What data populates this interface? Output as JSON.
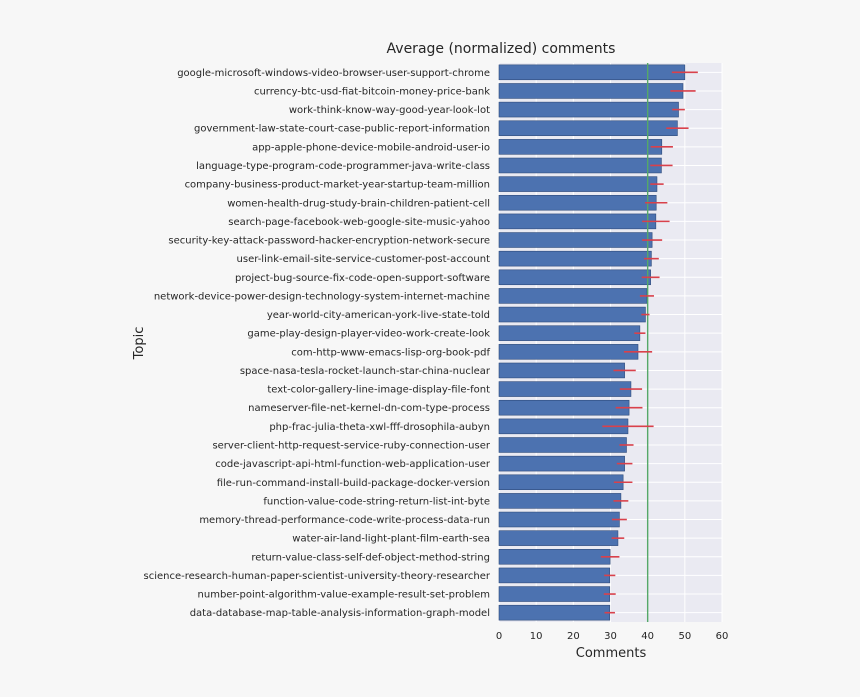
{
  "chart_data": {
    "type": "bar",
    "orientation": "horizontal",
    "title": "Average (normalized) comments",
    "xlabel": "Comments",
    "ylabel": "Topic",
    "xlim": [
      0,
      60
    ],
    "xticks": [
      "0",
      "10",
      "20",
      "30",
      "40",
      "50",
      "60"
    ],
    "grid": true,
    "reference_line_x": 40,
    "categories": [
      "google-microsoft-windows-video-browser-user-support-chrome",
      "currency-btc-usd-fiat-bitcoin-money-price-bank",
      "work-think-know-way-good-year-look-lot",
      "government-law-state-court-case-public-report-information",
      "app-apple-phone-device-mobile-android-user-io",
      "language-type-program-code-programmer-java-write-class",
      "company-business-product-market-year-startup-team-million",
      "women-health-drug-study-brain-children-patient-cell",
      "search-page-facebook-web-google-site-music-yahoo",
      "security-key-attack-password-hacker-encryption-network-secure",
      "user-link-email-site-service-customer-post-account",
      "project-bug-source-fix-code-open-support-software",
      "network-device-power-design-technology-system-internet-machine",
      "year-world-city-american-york-live-state-told",
      "game-play-design-player-video-work-create-look",
      "com-http-www-emacs-lisp-org-book-pdf",
      "space-nasa-tesla-rocket-launch-star-china-nuclear",
      "text-color-gallery-line-image-display-file-font",
      "nameserver-file-net-kernel-dn-com-type-process",
      "php-frac-julia-theta-xwl-fff-drosophila-aubyn",
      "server-client-http-request-service-ruby-connection-user",
      "code-javascript-api-html-function-web-application-user",
      "file-run-command-install-build-package-docker-version",
      "function-value-code-string-return-list-int-byte",
      "memory-thread-performance-code-write-process-data-run",
      "water-air-land-light-plant-film-earth-sea",
      "return-value-class-self-def-object-method-string",
      "science-research-human-paper-scientist-university-theory-researcher",
      "number-point-algorithm-value-example-result-set-problem",
      "data-database-map-table-analysis-information-graph-model"
    ],
    "values": [
      50.0,
      49.5,
      48.3,
      48.0,
      43.8,
      43.7,
      42.5,
      42.3,
      42.2,
      41.2,
      41.0,
      40.8,
      39.8,
      39.4,
      37.9,
      37.4,
      33.8,
      35.5,
      35.0,
      34.7,
      34.3,
      33.8,
      33.4,
      32.8,
      32.4,
      32.0,
      29.9,
      29.8,
      29.8,
      29.8
    ],
    "errors": [
      3.5,
      3.4,
      1.7,
      3.0,
      3.0,
      3.0,
      1.8,
      3.0,
      3.7,
      2.7,
      2.0,
      2.4,
      1.9,
      1.1,
      1.5,
      3.8,
      3.0,
      3.0,
      3.6,
      6.9,
      1.9,
      2.1,
      2.5,
      2.0,
      2.0,
      1.7,
      2.5,
      1.5,
      1.6,
      1.4
    ],
    "colors": {
      "bar": "#4c72b0",
      "bar_edge": "#2e4a7a",
      "error": "#d9414b",
      "reference_line": "#55a868",
      "plot_bg": "#eaeaf2",
      "grid": "#ffffff",
      "text": "#262626"
    }
  }
}
